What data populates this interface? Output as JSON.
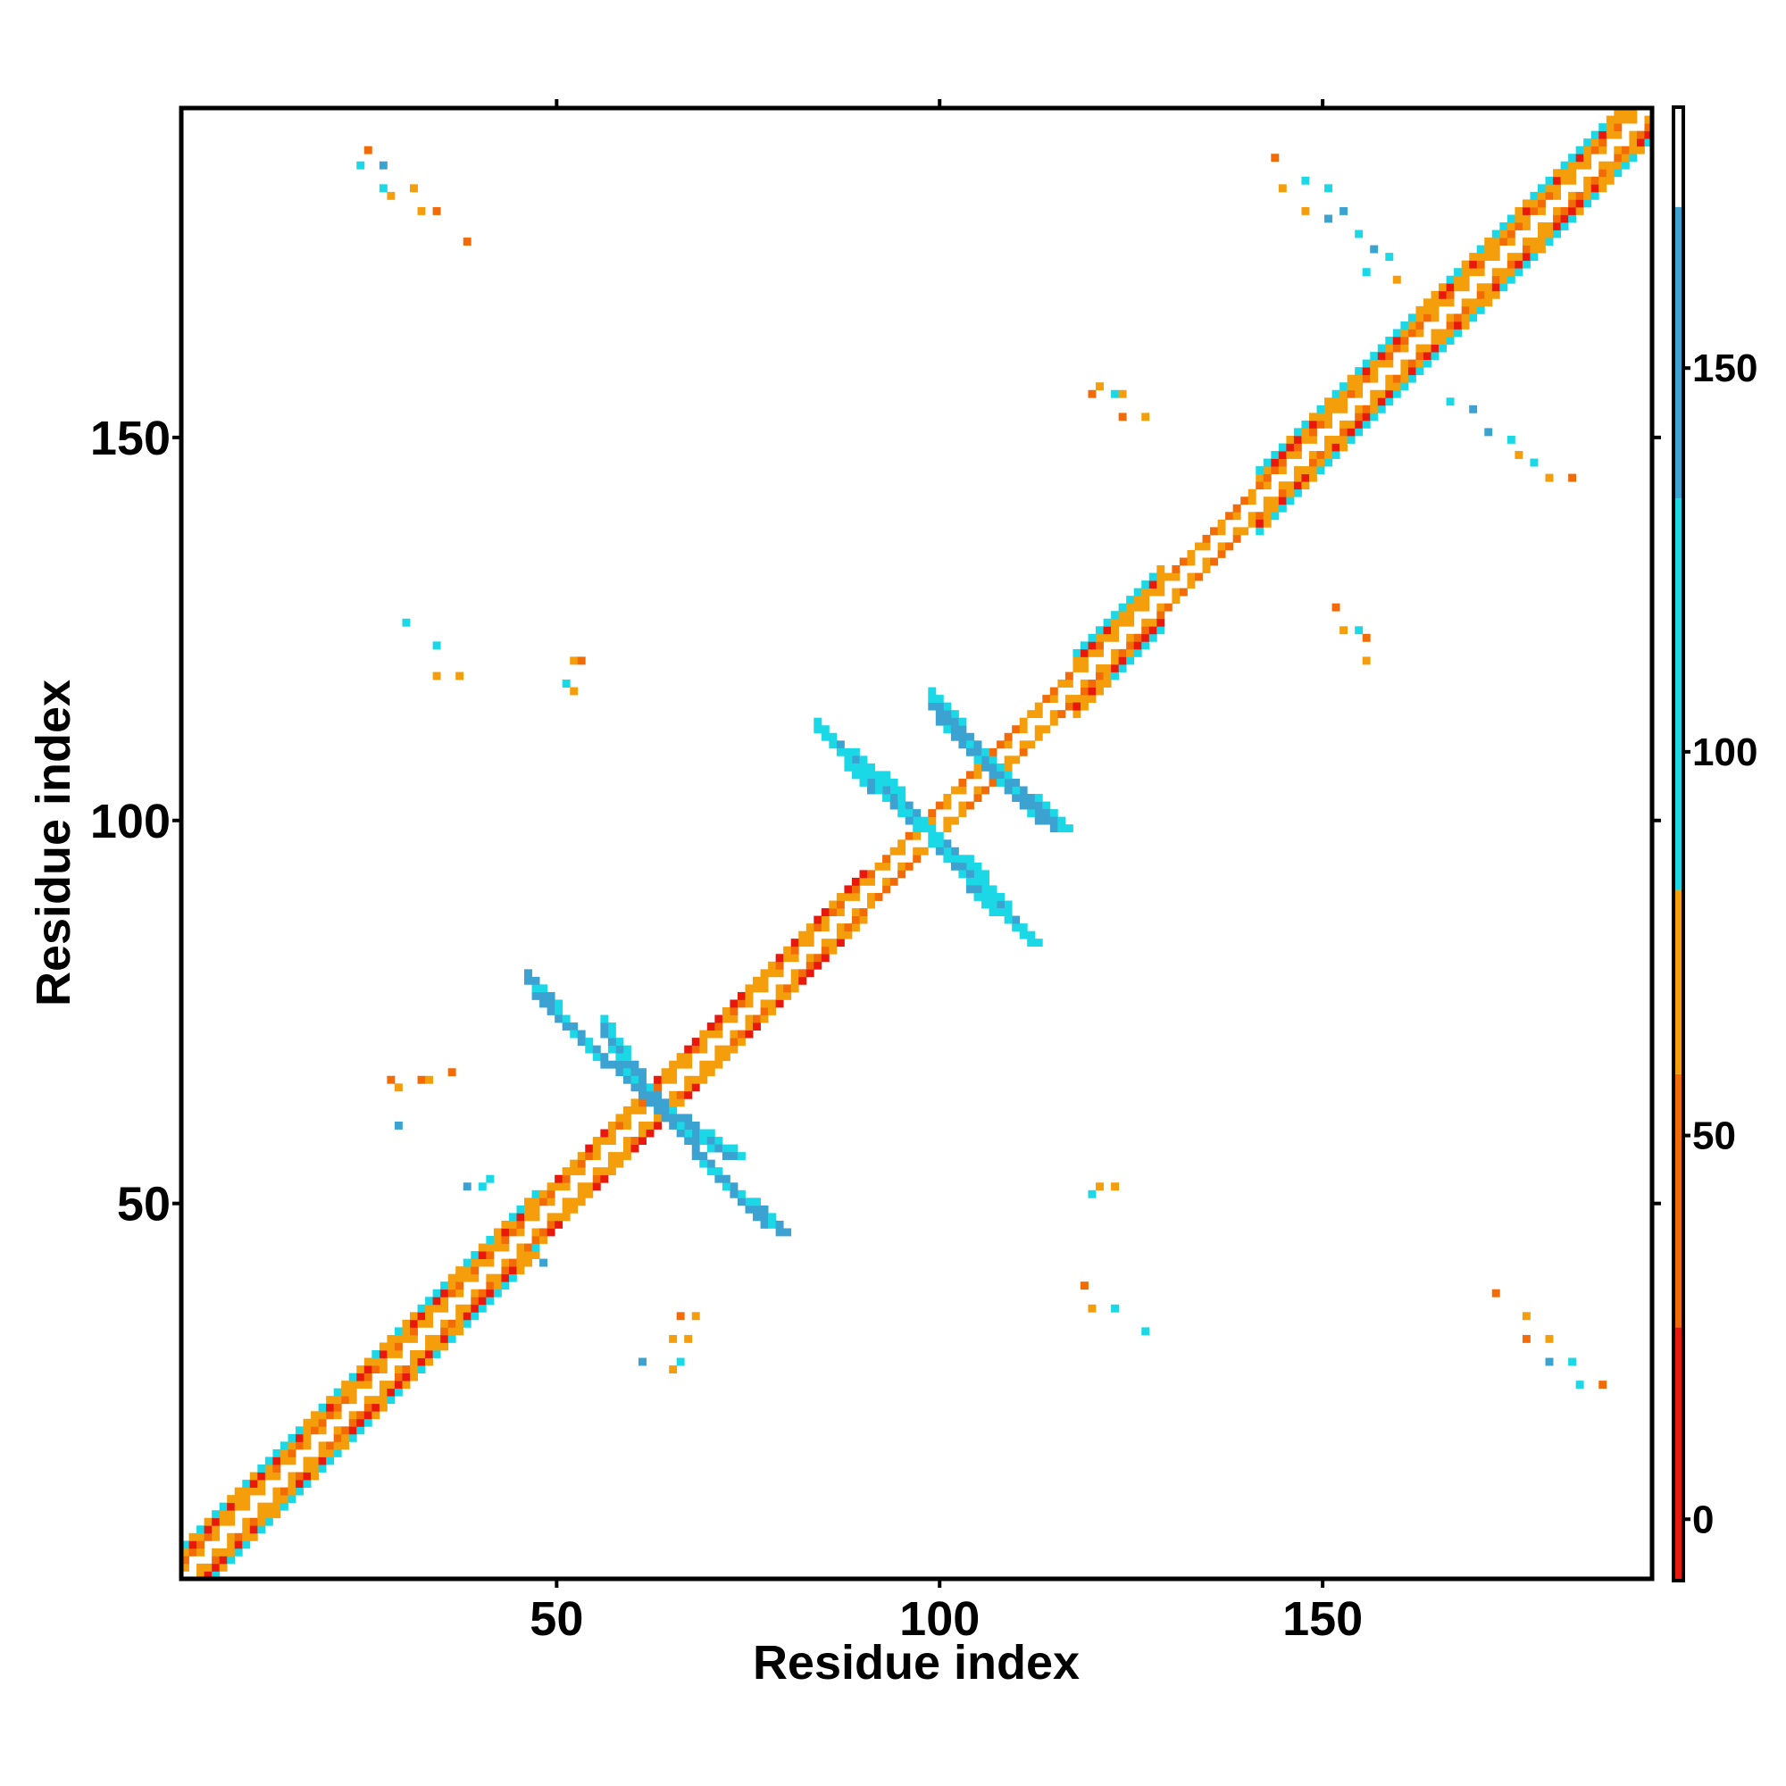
{
  "chart_data": {
    "type": "heatmap",
    "title": "",
    "xlabel": "Residue index",
    "ylabel": "Residue index",
    "xlim": [
      1,
      193
    ],
    "ylim": [
      1,
      193
    ],
    "xticks": [
      50,
      100,
      150
    ],
    "yticks": [
      50,
      100,
      150
    ],
    "x_tick_labels": [
      "50",
      "100",
      "150"
    ],
    "y_tick_labels": [
      "50",
      "100",
      "150"
    ],
    "grid": false,
    "legend": "right colorbar",
    "colorbar": {
      "range": [
        -8,
        184
      ],
      "ticks": [
        0,
        50,
        100,
        150
      ],
      "tick_labels": [
        "0",
        "50",
        "100",
        "150"
      ],
      "bins": [
        {
          "from": -8,
          "to": 25,
          "color": "#e8180c"
        },
        {
          "from": 25,
          "to": 58,
          "color": "#f36b07"
        },
        {
          "from": 58,
          "to": 82,
          "color": "#f59e0b"
        },
        {
          "from": 82,
          "to": 133,
          "color": "#1ad8e6"
        },
        {
          "from": 133,
          "to": 171,
          "color": "#3ba2d1"
        },
        {
          "from": 171,
          "to": 184,
          "color": "#ffffff"
        }
      ]
    },
    "diagonal_bands": [
      {
        "from": 1,
        "to": 47,
        "halfwidth": 4
      },
      {
        "from": 47,
        "to": 59,
        "halfwidth": 3
      },
      {
        "from": 59,
        "to": 70,
        "halfwidth": 3
      },
      {
        "from": 70,
        "to": 90,
        "halfwidth": 3
      },
      {
        "from": 90,
        "to": 118,
        "halfwidth": 2
      },
      {
        "from": 118,
        "to": 129,
        "halfwidth": 4
      },
      {
        "from": 129,
        "to": 142,
        "halfwidth": 2
      },
      {
        "from": 142,
        "to": 163,
        "halfwidth": 4
      },
      {
        "from": 163,
        "to": 193,
        "halfwidth": 4
      }
    ],
    "anti_diagonal_segments": [
      {
        "from": [
          47,
          77
        ],
        "to": [
          56,
          68
        ],
        "width": 2,
        "value": 150
      },
      {
        "from": [
          57,
          68
        ],
        "to": [
          63,
          62
        ],
        "width": 3,
        "value": 150
      },
      {
        "from": [
          63,
          62
        ],
        "to": [
          72,
          56
        ],
        "width": 3,
        "value": 150
      },
      {
        "from": [
          71,
          53
        ],
        "to": [
          79,
          46
        ],
        "width": 2,
        "value": 150
      },
      {
        "from": [
          86,
          110
        ],
        "to": [
          94,
          104
        ],
        "width": 2,
        "value": 110
      },
      {
        "from": [
          94,
          103
        ],
        "to": [
          99,
          98
        ],
        "width": 2,
        "value": 150
      },
      {
        "from": [
          99,
          97
        ],
        "to": [
          104,
          92
        ],
        "width": 2,
        "value": 110
      },
      {
        "from": [
          104,
          91
        ],
        "to": [
          112,
          84
        ],
        "width": 2,
        "value": 110
      },
      {
        "from": [
          100,
          113
        ],
        "to": [
          106,
          107
        ],
        "width": 3,
        "value": 150
      },
      {
        "from": [
          107,
          106
        ],
        "to": [
          115,
          99
        ],
        "width": 3,
        "value": 150
      }
    ],
    "scattered_contacts": [
      [
        25,
        188,
        50
      ],
      [
        24,
        186,
        100
      ],
      [
        27,
        186,
        140
      ],
      [
        27,
        183,
        100
      ],
      [
        28,
        182,
        75
      ],
      [
        31,
        183,
        60
      ],
      [
        32,
        180,
        60
      ],
      [
        34,
        180,
        50
      ],
      [
        38,
        176,
        50
      ],
      [
        30,
        126,
        100
      ],
      [
        34,
        123,
        100
      ],
      [
        34,
        119,
        60
      ],
      [
        37,
        119,
        60
      ],
      [
        52,
        121,
        60
      ],
      [
        53,
        121,
        50
      ],
      [
        51,
        118,
        100
      ],
      [
        52,
        117,
        60
      ],
      [
        28,
        66,
        50
      ],
      [
        29,
        65,
        60
      ],
      [
        32,
        66,
        50
      ],
      [
        33,
        66,
        60
      ],
      [
        36,
        67,
        50
      ],
      [
        29,
        60,
        150
      ],
      [
        38,
        52,
        140
      ],
      [
        40,
        52,
        100
      ],
      [
        41,
        53,
        100
      ],
      [
        47,
        44,
        100
      ],
      [
        48,
        42,
        140
      ],
      [
        66,
        35,
        50
      ],
      [
        68,
        35,
        60
      ],
      [
        65,
        32,
        60
      ],
      [
        67,
        32,
        75
      ],
      [
        66,
        29,
        100
      ],
      [
        65,
        28,
        60
      ],
      [
        61,
        29,
        150
      ],
      [
        120,
        51,
        100
      ],
      [
        121,
        52,
        60
      ],
      [
        123,
        52,
        60
      ],
      [
        119,
        39,
        50
      ],
      [
        120,
        36,
        60
      ],
      [
        123,
        36,
        100
      ],
      [
        127,
        33,
        100
      ],
      [
        120,
        156,
        50
      ],
      [
        121,
        157,
        60
      ],
      [
        123,
        156,
        100
      ],
      [
        124,
        156,
        60
      ],
      [
        124,
        153,
        50
      ],
      [
        127,
        153,
        60
      ],
      [
        144,
        187,
        50
      ],
      [
        145,
        183,
        60
      ],
      [
        148,
        184,
        100
      ],
      [
        151,
        183,
        100
      ],
      [
        148,
        180,
        60
      ],
      [
        151,
        179,
        140
      ],
      [
        153,
        180,
        140
      ],
      [
        155,
        177,
        100
      ],
      [
        157,
        175,
        140
      ],
      [
        159,
        174,
        100
      ],
      [
        156,
        172,
        100
      ],
      [
        160,
        171,
        60
      ],
      [
        167,
        155,
        100
      ],
      [
        170,
        154,
        140
      ],
      [
        172,
        151,
        140
      ],
      [
        175,
        150,
        100
      ],
      [
        176,
        148,
        75
      ],
      [
        178,
        147,
        100
      ],
      [
        180,
        145,
        60
      ],
      [
        183,
        145,
        50
      ],
      [
        152,
        128,
        50
      ],
      [
        153,
        125,
        60
      ],
      [
        155,
        125,
        100
      ],
      [
        156,
        124,
        50
      ],
      [
        156,
        121,
        60
      ],
      [
        173,
        38,
        50
      ],
      [
        177,
        35,
        60
      ],
      [
        177,
        32,
        50
      ],
      [
        180,
        32,
        60
      ],
      [
        180,
        29,
        140
      ],
      [
        183,
        29,
        100
      ],
      [
        184,
        26,
        100
      ],
      [
        187,
        26,
        50
      ]
    ]
  }
}
